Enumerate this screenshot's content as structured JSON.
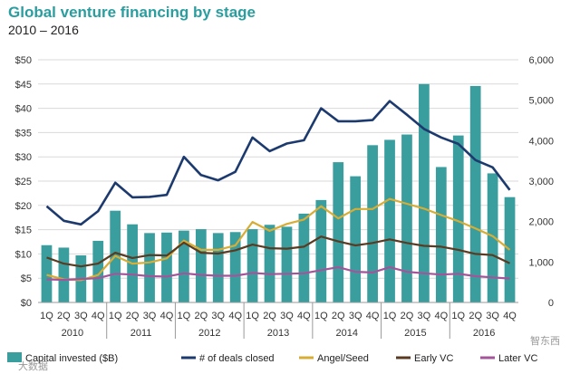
{
  "chart_data": {
    "type": "bar+line",
    "title": "Global venture financing by stage",
    "subtitle": "2010 – 2016",
    "categories": [
      "1Q",
      "2Q",
      "3Q",
      "4Q",
      "1Q",
      "2Q",
      "3Q",
      "4Q",
      "1Q",
      "2Q",
      "3Q",
      "4Q",
      "1Q",
      "2Q",
      "3Q",
      "4Q",
      "1Q",
      "2Q",
      "3Q",
      "4Q",
      "1Q",
      "2Q",
      "3Q",
      "4Q",
      "1Q",
      "2Q",
      "3Q",
      "4Q"
    ],
    "years": [
      "2010",
      "2011",
      "2012",
      "2013",
      "2014",
      "2015",
      "2016"
    ],
    "y_left": {
      "ticks": [
        "$0",
        "$5",
        "$10",
        "$15",
        "$20",
        "$25",
        "$30",
        "$35",
        "$40",
        "$45",
        "$50"
      ],
      "range": [
        0,
        50
      ]
    },
    "y_right": {
      "ticks": [
        "0",
        "1,000",
        "2,000",
        "3,000",
        "4,000",
        "5,000",
        "6,000"
      ],
      "range": [
        0,
        6000
      ]
    },
    "bars": {
      "name": "Capital invested ($B)",
      "color": "#3a9e9f",
      "values": [
        11.8,
        11.3,
        9.7,
        12.7,
        18.9,
        16.1,
        14.3,
        14.4,
        14.8,
        15.1,
        14.3,
        14.5,
        15.1,
        16.0,
        15.6,
        18.3,
        21.1,
        28.9,
        26.0,
        32.4,
        33.5,
        34.6,
        45.0,
        27.9,
        34.4,
        44.6,
        26.6,
        21.7
      ]
    },
    "series": [
      {
        "name": "# of deals closed",
        "color": "#1d3a6e",
        "values": [
          2380,
          2020,
          1930,
          2260,
          2960,
          2600,
          2610,
          2660,
          3600,
          3150,
          3020,
          3230,
          4080,
          3740,
          3930,
          4010,
          4800,
          4480,
          4480,
          4510,
          4980,
          4640,
          4290,
          4080,
          3920,
          3520,
          3340,
          2780
        ]
      },
      {
        "name": "Angel/Seed",
        "color": "#d7ad35",
        "values": [
          680,
          570,
          550,
          680,
          1150,
          960,
          990,
          1090,
          1530,
          1300,
          1300,
          1410,
          1990,
          1770,
          1940,
          2050,
          2380,
          2080,
          2310,
          2310,
          2560,
          2440,
          2320,
          2160,
          2010,
          1830,
          1640,
          1300
        ]
      },
      {
        "name": "Early VC",
        "color": "#5a3b22",
        "values": [
          1110,
          960,
          890,
          960,
          1230,
          1100,
          1170,
          1160,
          1480,
          1230,
          1210,
          1290,
          1430,
          1340,
          1330,
          1380,
          1630,
          1510,
          1410,
          1470,
          1560,
          1470,
          1400,
          1380,
          1300,
          1200,
          1170,
          970
        ]
      },
      {
        "name": "Later VC",
        "color": "#a4559a",
        "values": [
          570,
          560,
          580,
          600,
          710,
          690,
          650,
          640,
          720,
          680,
          660,
          660,
          730,
          700,
          710,
          720,
          800,
          870,
          760,
          740,
          870,
          760,
          720,
          690,
          710,
          650,
          620,
          590
        ]
      }
    ],
    "legend": [
      "Capital invested ($B)",
      "# of deals closed",
      "Angel/Seed",
      "Early VC",
      "Later VC"
    ],
    "legend_position": "bottom"
  },
  "watermarks": [
    "大数据",
    "智东西"
  ]
}
